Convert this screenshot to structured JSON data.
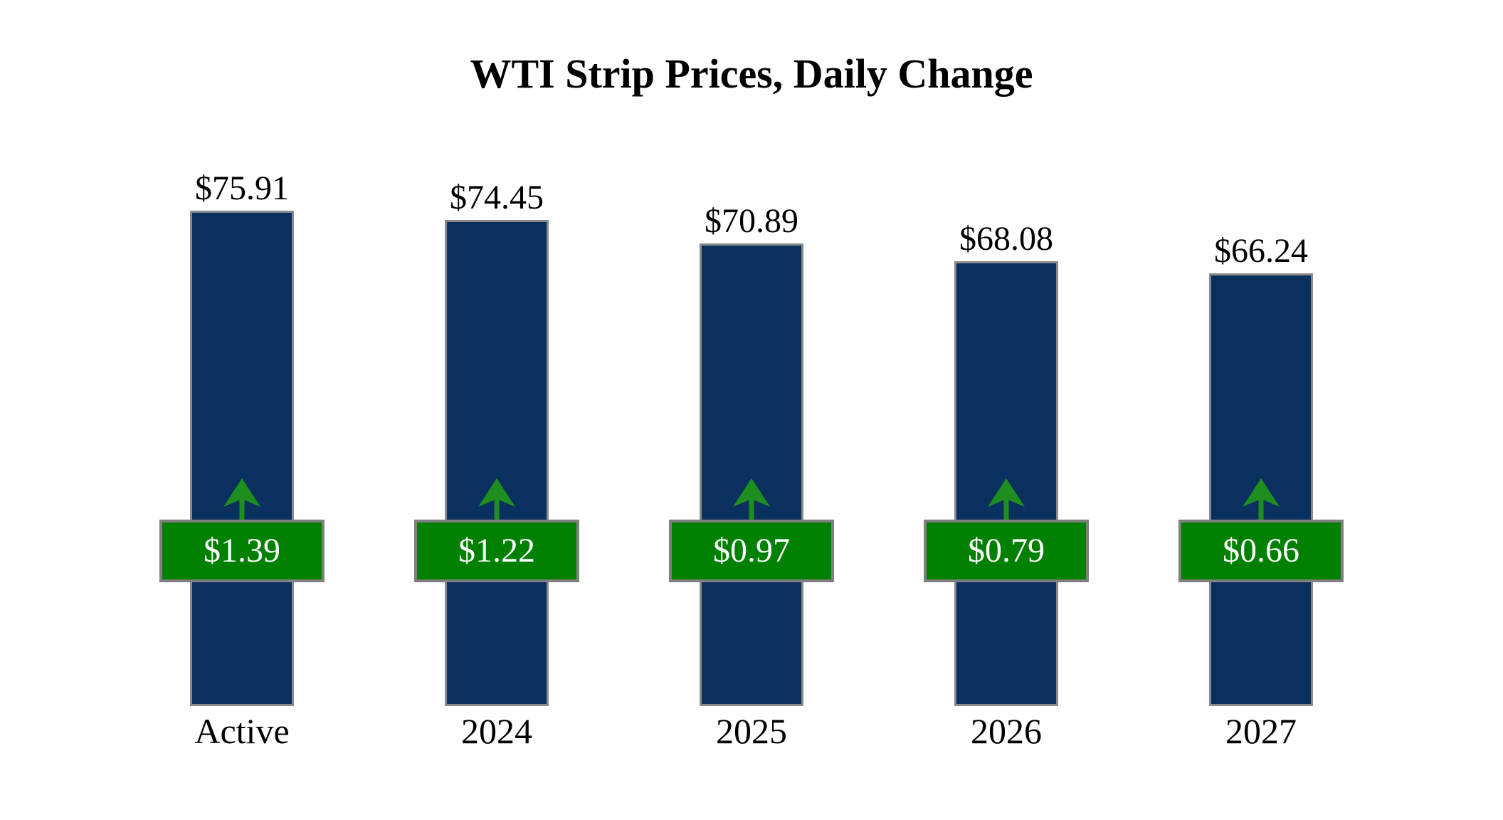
{
  "page": {
    "background": "#ffffff"
  },
  "chart_data": {
    "type": "bar",
    "title": "WTI Strip Prices, Daily Change",
    "categories": [
      "Active",
      "2024",
      "2025",
      "2026",
      "2027"
    ],
    "series": [
      {
        "name": "Strip Price",
        "values": [
          75.91,
          74.45,
          70.89,
          68.08,
          66.24
        ],
        "labels": [
          "$75.91",
          "$74.45",
          "$70.89",
          "$68.08",
          "$66.24"
        ]
      },
      {
        "name": "Daily Change",
        "values": [
          1.39,
          1.22,
          0.97,
          0.79,
          0.66
        ],
        "labels": [
          "$1.39",
          "$1.22",
          "$0.97",
          "$0.79",
          "$0.66"
        ]
      }
    ],
    "ylim": [
      0,
      92
    ],
    "grid": false,
    "legend": "none",
    "axes_shown": false,
    "change_direction": "up",
    "colors": {
      "bar": "#0a305f",
      "bar_border": "#8a8a8a",
      "badge": "#008000",
      "badge_border": "#808080",
      "badge_text": "#ffffff",
      "arrow": "#1e8e1e",
      "value_label": "#000000",
      "title_text": "#000000"
    }
  }
}
